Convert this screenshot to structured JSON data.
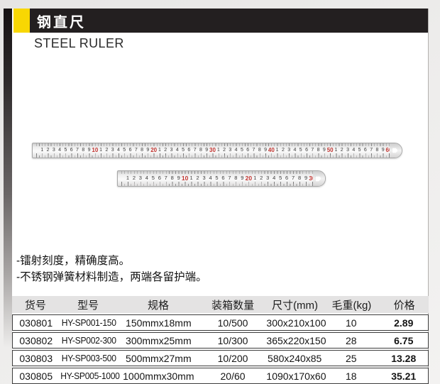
{
  "header": {
    "title_cn": "钢直尺",
    "title_en": "STEEL RULER",
    "accent_color": "#f8d703",
    "bar_color": "#231f20"
  },
  "rulers": {
    "long": {
      "length_cm": 60,
      "red_interval": 10,
      "number_color": "#3a3a3a",
      "red_color": "#c23430"
    },
    "short": {
      "length_cm": 30,
      "red_interval": 10,
      "number_color": "#3a3a3a",
      "red_color": "#c23430"
    }
  },
  "features": [
    "-镭射刻度，精确度高。",
    "-不锈钢弹簧材料制造，两端各留护端。"
  ],
  "table": {
    "columns": [
      "货号",
      "型号",
      "规格",
      "装箱数量",
      "尺寸(mm)",
      "毛重(kg)",
      "价格"
    ],
    "rows": [
      [
        "030801",
        "HY-SP001-150",
        "150mmx18mm",
        "10/500",
        "300x210x100",
        "10",
        "2.89"
      ],
      [
        "030802",
        "HY-SP002-300",
        "300mmx25mm",
        "10/300",
        "365x220x150",
        "28",
        "6.75"
      ],
      [
        "030803",
        "HY-SP003-500",
        "500mmx27mm",
        "10/200",
        "580x240x85",
        "25",
        "13.28"
      ],
      [
        "030805",
        "HY-SP005-1000",
        "1000mmx30mm",
        "20/60",
        "1090x170x60",
        "18",
        "35.21"
      ]
    ]
  }
}
